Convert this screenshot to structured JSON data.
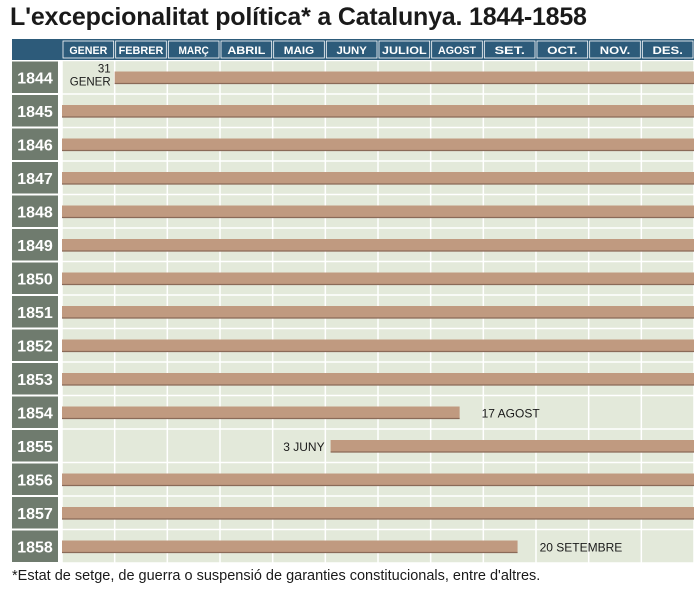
{
  "title": "L'excepcionalitat política* a Catalunya. 1844-1858",
  "footnote": "*Estat de setge, de guerra o suspensió de garanties constitucionals, entre d'altres.",
  "chart_data": {
    "type": "bar",
    "orientation": "horizontal-timeline",
    "months": [
      "GENER",
      "FEBRER",
      "MARÇ",
      "ABRIL",
      "MAIG",
      "JUNY",
      "JULIOL",
      "AGOST",
      "SET.",
      "OCT.",
      "NOV.",
      "DES."
    ],
    "rows": [
      {
        "year": "1844",
        "start": 1.0,
        "end": 12,
        "annotation": "31\nGENER",
        "annotation_side": "left"
      },
      {
        "year": "1845",
        "start": 0,
        "end": 12,
        "annotation": "",
        "annotation_side": ""
      },
      {
        "year": "1846",
        "start": 0,
        "end": 12,
        "annotation": "",
        "annotation_side": ""
      },
      {
        "year": "1847",
        "start": 0,
        "end": 12,
        "annotation": "",
        "annotation_side": ""
      },
      {
        "year": "1848",
        "start": 0,
        "end": 12,
        "annotation": "",
        "annotation_side": ""
      },
      {
        "year": "1849",
        "start": 0,
        "end": 12,
        "annotation": "",
        "annotation_side": ""
      },
      {
        "year": "1850",
        "start": 0,
        "end": 12,
        "annotation": "",
        "annotation_side": ""
      },
      {
        "year": "1851",
        "start": 0,
        "end": 12,
        "annotation": "",
        "annotation_side": ""
      },
      {
        "year": "1852",
        "start": 0,
        "end": 12,
        "annotation": "",
        "annotation_side": ""
      },
      {
        "year": "1853",
        "start": 0,
        "end": 12,
        "annotation": "",
        "annotation_side": ""
      },
      {
        "year": "1854",
        "start": 0,
        "end": 7.55,
        "annotation": "17 AGOST",
        "annotation_side": "right"
      },
      {
        "year": "1855",
        "start": 5.1,
        "end": 12,
        "annotation": "3 JUNY",
        "annotation_side": "left"
      },
      {
        "year": "1856",
        "start": 0,
        "end": 12,
        "annotation": "",
        "annotation_side": ""
      },
      {
        "year": "1857",
        "start": 0,
        "end": 12,
        "annotation": "",
        "annotation_side": ""
      },
      {
        "year": "1858",
        "start": 0,
        "end": 8.65,
        "annotation": "20 SETEMBRE",
        "annotation_side": "right"
      }
    ],
    "colors": {
      "header": "#2d5b7a",
      "year_label": "#6f7b6e",
      "grid_bg": "#e3e9da",
      "grid_line": "#ffffff",
      "bar": "#c09a80",
      "bar_edge": "#8a6a58"
    }
  }
}
